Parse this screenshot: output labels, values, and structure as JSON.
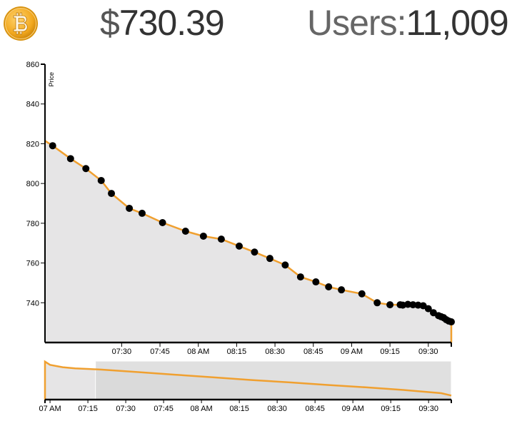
{
  "header": {
    "price_symbol": "$",
    "price_value": "730.39",
    "users_label": "Users:",
    "users_value": "11,009"
  },
  "colors": {
    "line": "#f0a030",
    "area": "#e6e5e6",
    "point": "#000000",
    "brush_selection": "#d6d6d6",
    "logo": "#f2a81e"
  },
  "icons": {
    "logo": "bitcoin-icon"
  },
  "chart_data": [
    {
      "type": "area",
      "ylabel": "Price",
      "ylim": [
        720,
        860
      ],
      "xlim": [
        "07:00",
        "09:39"
      ],
      "y_ticks": [
        740,
        760,
        780,
        800,
        820,
        840,
        860
      ],
      "x_ticks": [
        "07:30",
        "07:45",
        "08 AM",
        "08:15",
        "08:30",
        "08:45",
        "09 AM",
        "09:15",
        "09:30"
      ],
      "x_tick_minutes": [
        450,
        465,
        480,
        495,
        510,
        525,
        540,
        555,
        570
      ],
      "grid": false,
      "series": [
        {
          "x": [
            "07:00",
            "07:03",
            "07:10",
            "07:16",
            "07:22",
            "07:26",
            "07:33",
            "07:38",
            "07:46",
            "07:55",
            "08:02",
            "08:09",
            "08:16",
            "08:22",
            "08:28",
            "08:34",
            "08:40",
            "08:46",
            "08:51",
            "08:56",
            "09:04",
            "09:10",
            "09:15",
            "09:19",
            "09:20",
            "09:22",
            "09:24",
            "09:26",
            "09:28",
            "09:30",
            "09:32",
            "09:34",
            "09:35",
            "09:36",
            "09:37",
            "09:38",
            "09:39"
          ],
          "y": [
            821.5,
            819,
            812.5,
            807.5,
            801.5,
            795,
            787.5,
            785,
            780.3,
            776,
            773.5,
            772,
            768.5,
            765.5,
            762.3,
            759,
            753,
            750.5,
            748,
            746.5,
            744.5,
            740,
            739,
            739,
            738.8,
            739.2,
            739,
            738.8,
            738.5,
            737,
            735,
            733.5,
            733,
            732.5,
            731.5,
            730.8,
            730.39
          ]
        }
      ]
    },
    {
      "type": "area",
      "role": "overview",
      "xlim": [
        "06:58",
        "09:39"
      ],
      "x_ticks": [
        "07 AM",
        "07:15",
        "07:30",
        "07:45",
        "08 AM",
        "08:15",
        "08:30",
        "08:45",
        "09 AM",
        "09:15",
        "09:30"
      ],
      "x_tick_minutes": [
        420,
        435,
        450,
        465,
        480,
        495,
        510,
        525,
        540,
        555,
        570
      ],
      "selection": [
        "07:18",
        "09:39"
      ],
      "series": [
        {
          "x": [
            "06:58",
            "07:00",
            "07:05",
            "07:10",
            "07:20",
            "07:35",
            "07:50",
            "08:05",
            "08:20",
            "08:35",
            "08:50",
            "09:05",
            "09:20",
            "09:35",
            "09:39"
          ],
          "y": [
            860,
            849,
            841,
            837,
            833,
            824,
            815,
            806,
            797,
            789,
            780,
            772,
            763,
            752,
            744
          ]
        }
      ]
    }
  ]
}
